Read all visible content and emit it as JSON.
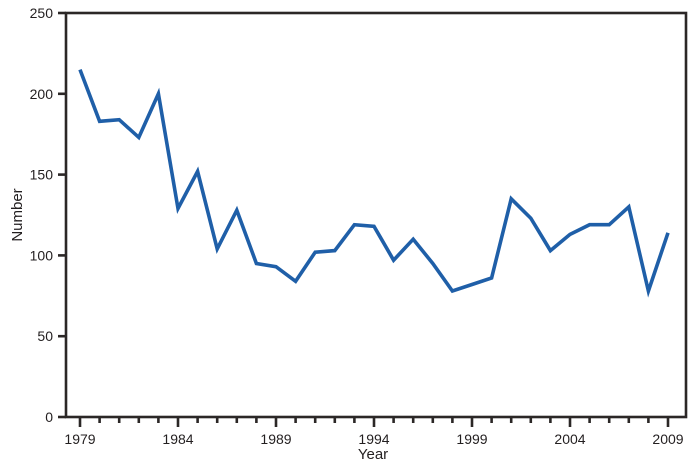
{
  "chart_data": {
    "type": "line",
    "title": "",
    "xlabel": "Year",
    "ylabel": "Number",
    "x": [
      1979,
      1980,
      1981,
      1982,
      1983,
      1984,
      1985,
      1986,
      1987,
      1988,
      1989,
      1990,
      1991,
      1992,
      1993,
      1994,
      1995,
      1996,
      1997,
      1998,
      1999,
      2000,
      2001,
      2002,
      2003,
      2004,
      2005,
      2006,
      2007,
      2008,
      2009
    ],
    "series": [
      {
        "name": "Number",
        "values": [
          215,
          183,
          184,
          173,
          200,
          129,
          152,
          104,
          128,
          95,
          93,
          84,
          102,
          103,
          119,
          118,
          97,
          110,
          95,
          78,
          82,
          86,
          135,
          123,
          103,
          113,
          119,
          119,
          130,
          78,
          114
        ]
      }
    ],
    "ylim": [
      0,
      250
    ],
    "y_ticks": [
      0,
      50,
      100,
      150,
      200,
      250
    ],
    "x_major_ticks": [
      1979,
      1984,
      1989,
      1994,
      1999,
      2004,
      2009
    ],
    "x_minor_tick_every": 1,
    "grid": false,
    "legend": "none",
    "box": true,
    "line_color": "#1f5fa8",
    "axis_color": "#2b2726",
    "text_color": "#231f20"
  }
}
